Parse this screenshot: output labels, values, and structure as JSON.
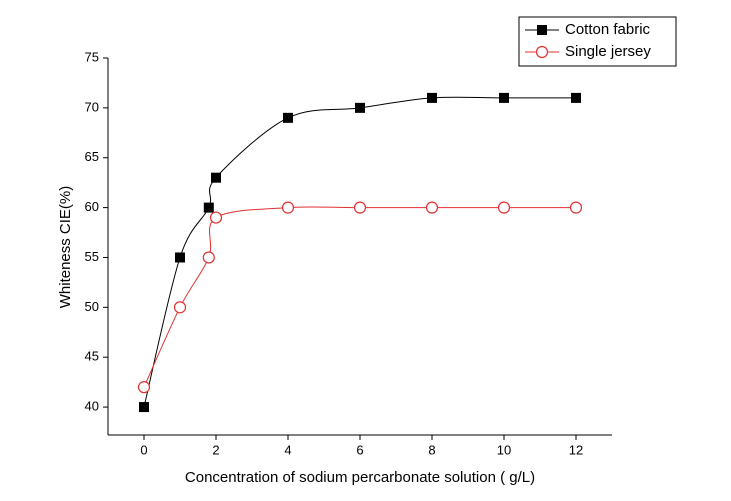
{
  "chart_data": {
    "type": "line",
    "x_label": "Concentration of sodium percarbonate solution (  g/L)",
    "y_label": "Whiteness CIE(%)",
    "xlim": [
      -1,
      13
    ],
    "xticks": [
      0,
      2,
      4,
      6,
      8,
      10,
      12
    ],
    "ylim": [
      37.2,
      75
    ],
    "yticks": [
      40,
      45,
      50,
      55,
      60,
      65,
      70,
      75
    ],
    "legend": "top-right",
    "series": [
      {
        "name": "Cotton fabric",
        "color": "#000000",
        "marker": "square",
        "x": [
          0,
          1,
          1.8,
          2,
          4,
          6,
          8,
          10,
          12
        ],
        "values": [
          40,
          55,
          60,
          63,
          69,
          70,
          71,
          71,
          71
        ]
      },
      {
        "name": "Single jersey",
        "color": "#e03030",
        "marker": "open-circle",
        "x": [
          0,
          1,
          1.8,
          2,
          4,
          6,
          8,
          10,
          12
        ],
        "values": [
          42,
          50,
          55,
          59,
          60,
          60,
          60,
          60,
          60
        ]
      }
    ]
  }
}
